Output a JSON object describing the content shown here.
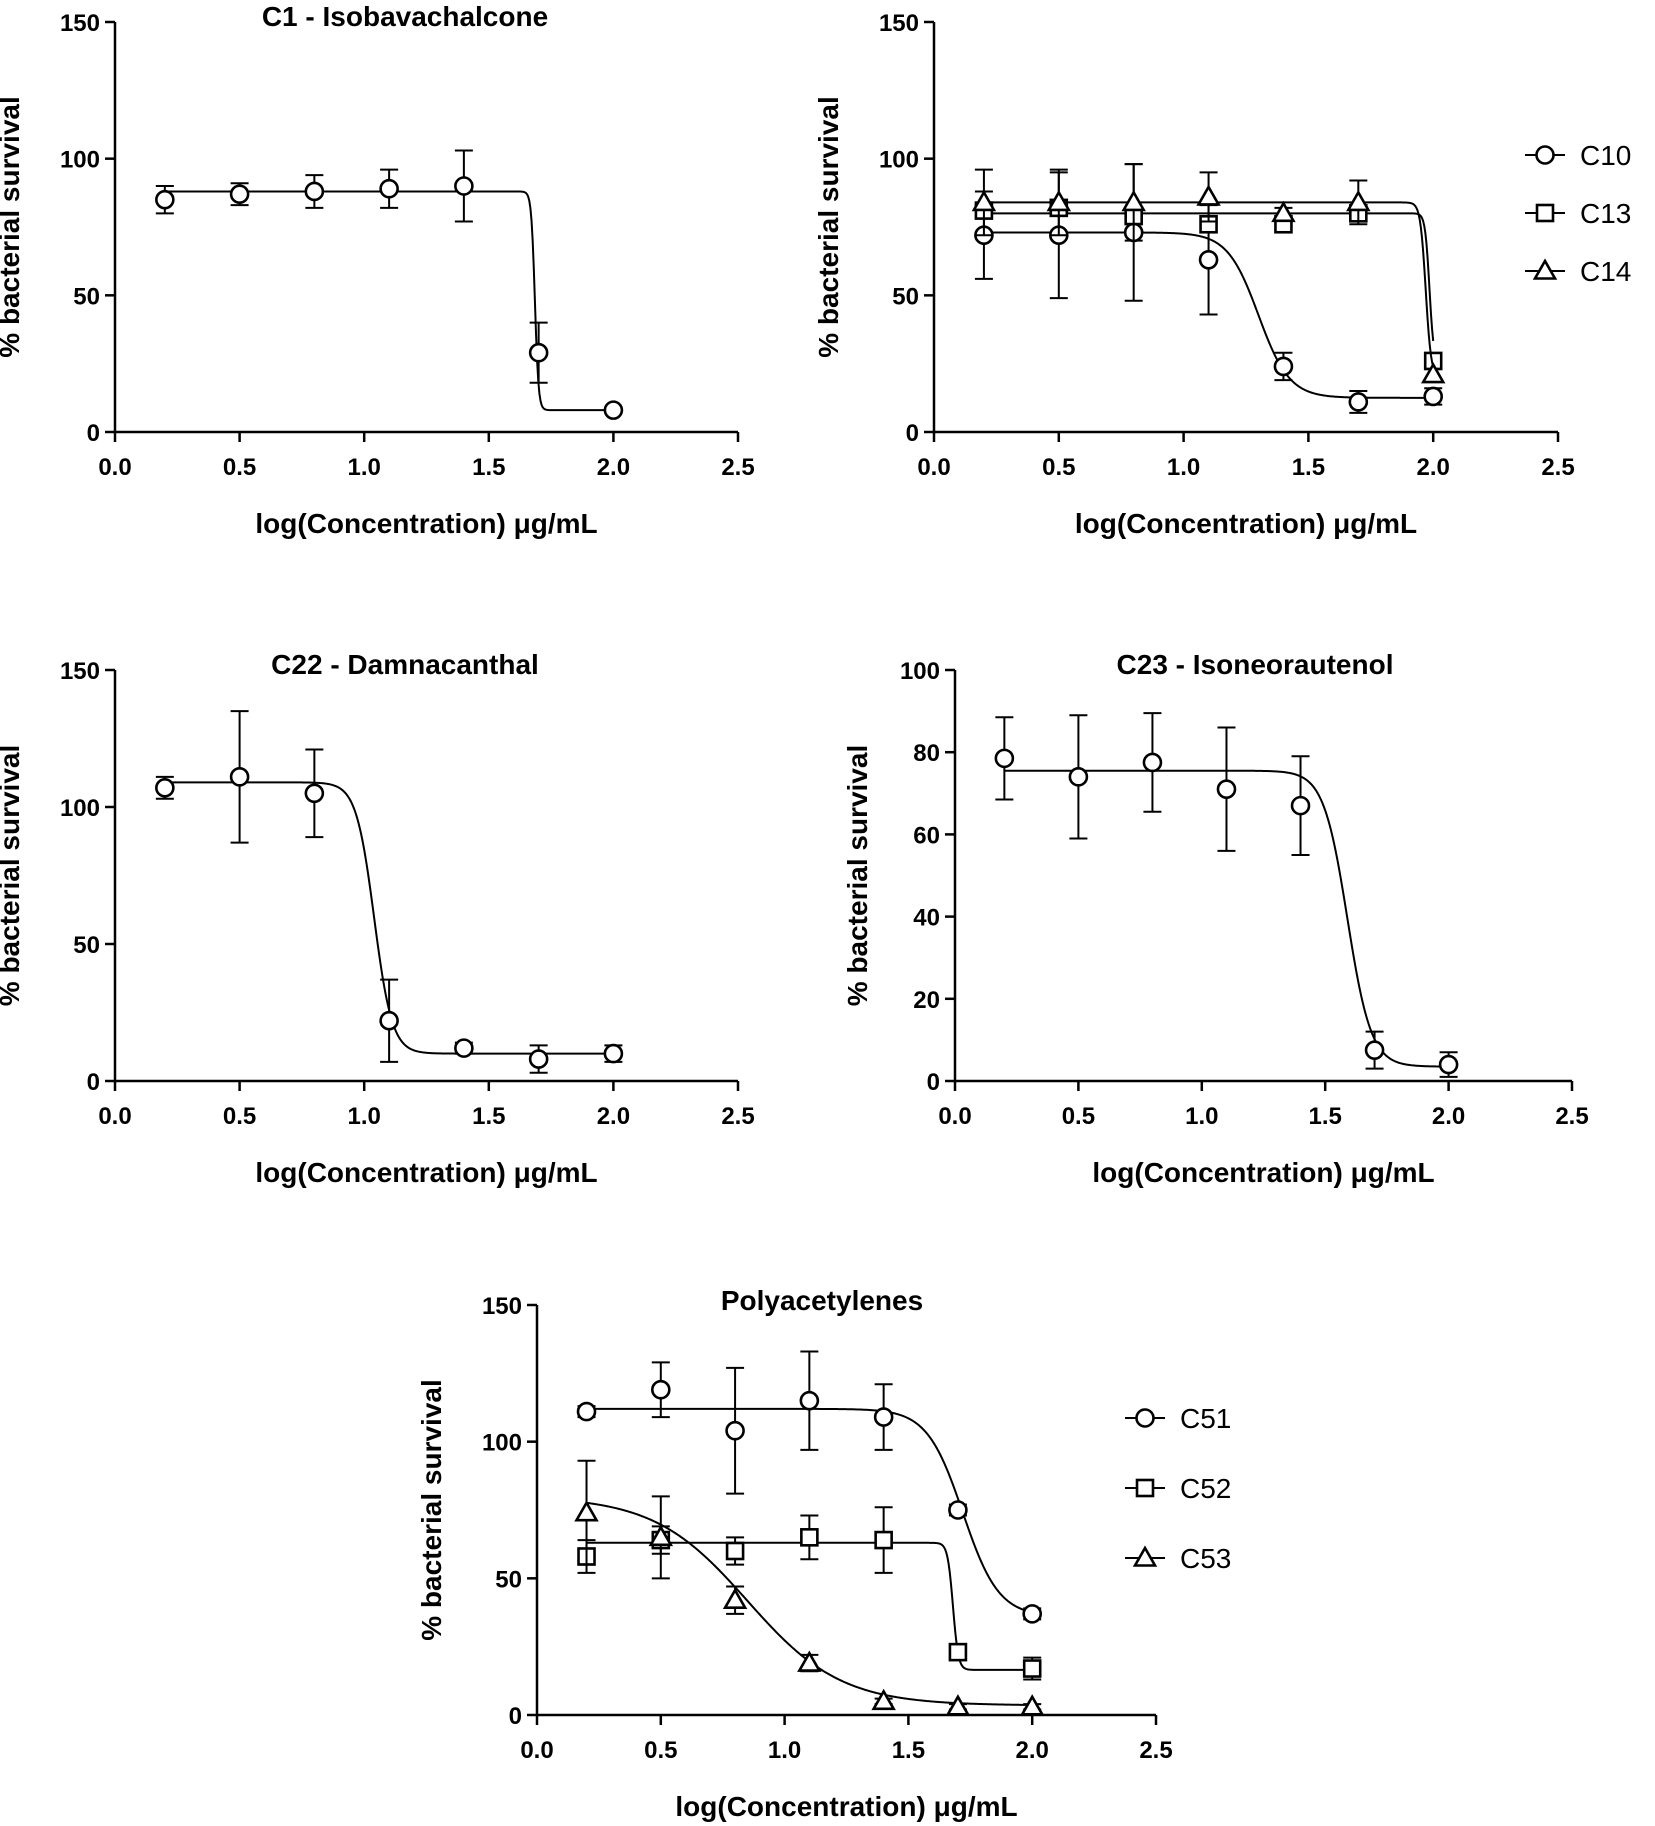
{
  "chart_data": [
    {
      "type": "scatter",
      "title": "C1 - Isobavachalcone",
      "xlabel": "log(Concentration) μg/mL",
      "ylabel": "% bacterial survival",
      "xlim": [
        0.0,
        2.5
      ],
      "ylim": [
        0,
        150
      ],
      "xticks": [
        "0.0",
        "0.5",
        "1.0",
        "1.5",
        "2.0",
        "2.5"
      ],
      "yticks": [
        "0",
        "50",
        "100",
        "150"
      ],
      "legend": false,
      "series": [
        {
          "name": "C1",
          "marker": "circle",
          "x": [
            0.2,
            0.5,
            0.8,
            1.1,
            1.4,
            1.7,
            2.0
          ],
          "y": [
            85,
            87,
            88,
            89,
            90,
            29,
            8
          ],
          "err": [
            5,
            4,
            6,
            7,
            13,
            11,
            0
          ],
          "fit": {
            "top": 88,
            "bottom": 8,
            "logec50": 1.685,
            "hill": 60
          }
        }
      ]
    },
    {
      "type": "scatter",
      "title": "",
      "xlabel": "log(Concentration) μg/mL",
      "ylabel": "% bacterial survival",
      "xlim": [
        0.0,
        2.5
      ],
      "ylim": [
        0,
        150
      ],
      "xticks": [
        "0.0",
        "0.5",
        "1.0",
        "1.5",
        "2.0",
        "2.5"
      ],
      "yticks": [
        "0",
        "50",
        "100",
        "150"
      ],
      "legend": true,
      "series": [
        {
          "name": "C10",
          "marker": "circle",
          "x": [
            0.2,
            0.5,
            0.8,
            1.1,
            1.4,
            1.7,
            2.0
          ],
          "y": [
            72,
            72,
            73,
            63,
            24,
            11,
            13
          ],
          "err": [
            16,
            23,
            25,
            20,
            5,
            4,
            3
          ],
          "fit": {
            "top": 73,
            "bottom": 12.5,
            "logec50": 1.3,
            "hill": 7
          }
        },
        {
          "name": "C13",
          "marker": "square",
          "x": [
            0.2,
            0.5,
            0.8,
            1.1,
            1.4,
            1.7,
            2.0
          ],
          "y": [
            81,
            82,
            79,
            76,
            76,
            80,
            26
          ],
          "err": [
            2,
            2,
            2,
            2,
            2,
            2,
            2
          ],
          "fit": {
            "top": 80,
            "bottom": 25,
            "logec50": 1.985,
            "hill": 50
          }
        },
        {
          "name": "C14",
          "marker": "triangle",
          "x": [
            0.2,
            0.5,
            0.8,
            1.1,
            1.4,
            1.7,
            2.0
          ],
          "y": [
            84,
            84,
            84,
            86,
            80,
            84,
            21
          ],
          "err": [
            12,
            12,
            14,
            9,
            2,
            8,
            2
          ],
          "fit": {
            "top": 84,
            "bottom": 20,
            "logec50": 1.97,
            "hill": 40
          }
        }
      ]
    },
    {
      "type": "scatter",
      "title": "C22 - Damnacanthal",
      "xlabel": "log(Concentration) μg/mL",
      "ylabel": "% bacterial survival",
      "xlim": [
        0.0,
        2.5
      ],
      "ylim": [
        0,
        150
      ],
      "xticks": [
        "0.0",
        "0.5",
        "1.0",
        "1.5",
        "2.0",
        "2.5"
      ],
      "yticks": [
        "0",
        "50",
        "100",
        "150"
      ],
      "legend": false,
      "series": [
        {
          "name": "C22",
          "marker": "circle",
          "x": [
            0.2,
            0.5,
            0.8,
            1.1,
            1.4,
            1.7,
            2.0
          ],
          "y": [
            107,
            111,
            105,
            22,
            12,
            8,
            10
          ],
          "err": [
            4,
            24,
            16,
            15,
            2,
            5,
            3
          ],
          "fit": {
            "top": 109,
            "bottom": 10,
            "logec50": 1.04,
            "hill": 12
          }
        }
      ]
    },
    {
      "type": "scatter",
      "title": "C23 - Isoneorautenol",
      "xlabel": "log(Concentration) μg/mL",
      "ylabel": "% bacterial survival",
      "xlim": [
        0.0,
        2.5
      ],
      "ylim": [
        0,
        100
      ],
      "xticks": [
        "0.0",
        "0.5",
        "1.0",
        "1.5",
        "2.0",
        "2.5"
      ],
      "yticks": [
        "0",
        "20",
        "40",
        "60",
        "80",
        "100"
      ],
      "legend": false,
      "series": [
        {
          "name": "C23",
          "marker": "circle",
          "x": [
            0.2,
            0.5,
            0.8,
            1.1,
            1.4,
            1.7,
            2.0
          ],
          "y": [
            78.5,
            74,
            77.5,
            71,
            67,
            7.5,
            4
          ],
          "err": [
            10,
            15,
            12,
            15,
            12,
            4.5,
            3
          ],
          "fit": {
            "top": 75.5,
            "bottom": 3.5,
            "logec50": 1.59,
            "hill": 9
          }
        }
      ]
    },
    {
      "type": "scatter",
      "title": "Polyacetylenes",
      "xlabel": "log(Concentration) μg/mL",
      "ylabel": "% bacterial survival",
      "xlim": [
        0.0,
        2.5
      ],
      "ylim": [
        0,
        150
      ],
      "xticks": [
        "0.0",
        "0.5",
        "1.0",
        "1.5",
        "2.0",
        "2.5"
      ],
      "yticks": [
        "0",
        "50",
        "100",
        "150"
      ],
      "legend": true,
      "series": [
        {
          "name": "C51",
          "marker": "circle",
          "x": [
            0.2,
            0.5,
            0.8,
            1.1,
            1.4,
            1.7,
            2.0
          ],
          "y": [
            111,
            119,
            104,
            115,
            109,
            75,
            37
          ],
          "err": [
            2,
            10,
            23,
            18,
            12,
            2,
            2
          ],
          "fit": {
            "top": 112,
            "bottom": 36,
            "logec50": 1.72,
            "hill": 6
          }
        },
        {
          "name": "C52",
          "marker": "square",
          "x": [
            0.2,
            0.5,
            0.8,
            1.1,
            1.4,
            1.7,
            2.0
          ],
          "y": [
            58,
            64,
            60,
            65,
            64,
            23,
            17
          ],
          "err": [
            6,
            5,
            5,
            8,
            12,
            2,
            4
          ],
          "fit": {
            "top": 63,
            "bottom": 16.5,
            "logec50": 1.68,
            "hill": 40
          }
        },
        {
          "name": "C53",
          "marker": "triangle",
          "x": [
            0.2,
            0.5,
            0.8,
            1.1,
            1.4,
            1.7,
            2.0
          ],
          "y": [
            74,
            65,
            42,
            19,
            5,
            3,
            3
          ],
          "err": [
            19,
            15,
            5,
            3,
            1,
            1,
            1
          ],
          "fit": {
            "top": 80,
            "bottom": 3.5,
            "logec50": 0.85,
            "hill": 2.3
          }
        }
      ]
    }
  ]
}
